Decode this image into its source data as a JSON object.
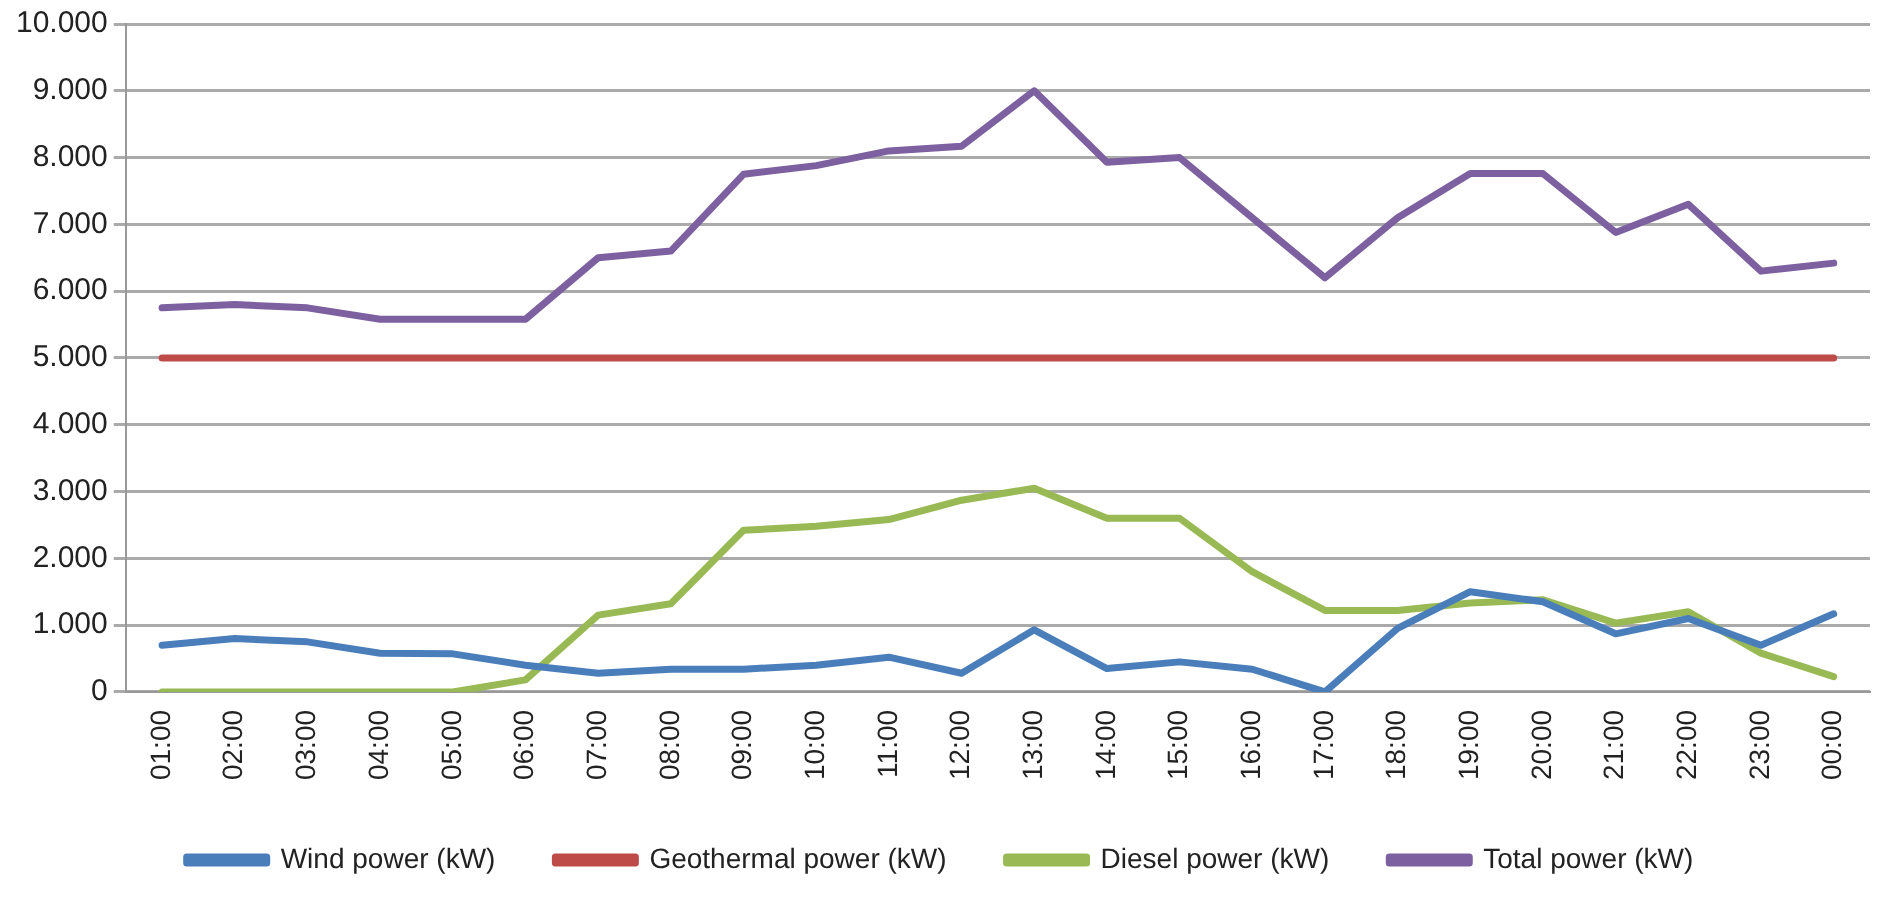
{
  "chart_data": {
    "type": "line",
    "categories": [
      "01:00",
      "02:00",
      "03:00",
      "04:00",
      "05:00",
      "06:00",
      "07:00",
      "08:00",
      "09:00",
      "10:00",
      "11:00",
      "12:00",
      "13:00",
      "14:00",
      "15:00",
      "16:00",
      "17:00",
      "18:00",
      "19:00",
      "20:00",
      "21:00",
      "22:00",
      "23:00",
      "00:00"
    ],
    "series": [
      {
        "name": "Wind power (kW)",
        "color": "#4a7ebb",
        "values": [
          700,
          800,
          750,
          580,
          570,
          400,
          280,
          340,
          340,
          400,
          520,
          280,
          930,
          350,
          450,
          340,
          0,
          950,
          1500,
          1350,
          870,
          1100,
          700,
          1170
        ]
      },
      {
        "name": "Geothermal power (kW)",
        "color": "#be4b48",
        "values": [
          5000,
          5000,
          5000,
          5000,
          5000,
          5000,
          5000,
          5000,
          5000,
          5000,
          5000,
          5000,
          5000,
          5000,
          5000,
          5000,
          5000,
          5000,
          5000,
          5000,
          5000,
          5000,
          5000,
          5000
        ]
      },
      {
        "name": "Diesel power (kW)",
        "color": "#98b954",
        "values": [
          0,
          0,
          0,
          0,
          0,
          180,
          1150,
          1320,
          2420,
          2480,
          2580,
          2870,
          3050,
          2600,
          2600,
          1800,
          1220,
          1220,
          1330,
          1380,
          1030,
          1200,
          580,
          230
        ]
      },
      {
        "name": "Total power (kW)",
        "color": "#7d60a0",
        "values": [
          5750,
          5800,
          5750,
          5580,
          5580,
          5580,
          6500,
          6600,
          7750,
          7880,
          8100,
          8170,
          9000,
          7930,
          8000,
          7100,
          6200,
          7100,
          7760,
          7760,
          6880,
          7300,
          6300,
          6420
        ]
      }
    ],
    "ylim": [
      0,
      10000
    ],
    "yticks": [
      0,
      {
        "value": 1000,
        "label": "1.000"
      },
      {
        "value": 2000,
        "label": "2.000"
      },
      {
        "value": 3000,
        "label": "3.000"
      },
      {
        "value": 4000,
        "label": "4.000"
      },
      {
        "value": 5000,
        "label": "5.000"
      },
      {
        "value": 6000,
        "label": "6.000"
      },
      {
        "value": 7000,
        "label": "7.000"
      },
      {
        "value": 8000,
        "label": "8.000"
      },
      {
        "value": 9000,
        "label": "9.000"
      },
      {
        "value": 10000,
        "label": "10.000"
      }
    ],
    "grid": "y",
    "legend": "bottom",
    "marker": "none",
    "line_style": "solid"
  }
}
